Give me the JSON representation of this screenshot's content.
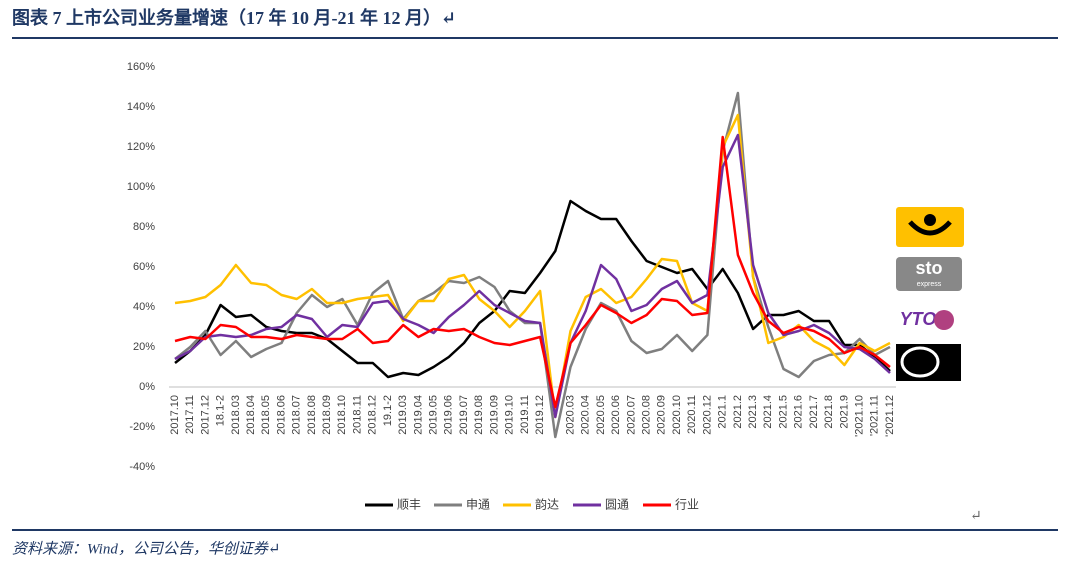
{
  "header": {
    "title": "图表 7  上市公司业务量增速（17 年 10 月-21 年 12 月）↵"
  },
  "footer": {
    "source": "资料来源：Wind，公司公告，华创证券↵"
  },
  "end_mark": "↵",
  "logos": [
    "sto",
    "express",
    "YTO"
  ],
  "chart_data": {
    "type": "line",
    "categories": [
      "2017.10",
      "2017.11",
      "2017.12",
      "18.1-2",
      "2018.03",
      "2018.04",
      "2018.05",
      "2018.06",
      "2018.07",
      "2018.08",
      "2018.09",
      "2018.10",
      "2018.11",
      "2018.12",
      "19.1-2",
      "2019.03",
      "2019.04",
      "2019.05",
      "2019.06",
      "2019.07",
      "2019.08",
      "2019.09",
      "2019.10",
      "2019.11",
      "2019.12",
      null,
      "2020.03",
      "2020.04",
      "2020.05",
      "2020.06",
      "2020.07",
      "2020.08",
      "2020.09",
      "2020.10",
      "2020.11",
      "2020.12",
      "2021.1",
      "2021.2",
      "2021.3",
      "2021.4",
      "2021.5",
      "2021.6",
      "2021.7",
      "2021.8",
      "2021.9",
      "'2021.10",
      "'2021.11",
      "'2021.12"
    ],
    "series": [
      {
        "name": "顺丰",
        "color": "#000000",
        "values": [
          12,
          18,
          26,
          41,
          35,
          36,
          30,
          28,
          27,
          27,
          24,
          18,
          12,
          12,
          5,
          7,
          6,
          10,
          15,
          22,
          32,
          38,
          48,
          47,
          57,
          68,
          93,
          88,
          84,
          84,
          73,
          63,
          60,
          57,
          59,
          49,
          59,
          47,
          29,
          36,
          36,
          38,
          33,
          33,
          21,
          21,
          15,
          8
        ]
      },
      {
        "name": "申通",
        "color": "#7f7f7f",
        "values": [
          14,
          20,
          28,
          16,
          23,
          15,
          19,
          22,
          37,
          46,
          40,
          44,
          31,
          47,
          53,
          34,
          43,
          47,
          53,
          52,
          55,
          50,
          38,
          32,
          32,
          -25,
          10,
          29,
          42,
          38,
          23,
          17,
          19,
          26,
          18,
          26,
          118,
          147,
          55,
          30,
          9,
          5,
          13,
          16,
          17,
          24,
          16,
          20
        ]
      },
      {
        "name": "韵达",
        "color": "#ffc000",
        "values": [
          42,
          43,
          45,
          51,
          61,
          52,
          51,
          46,
          44,
          49,
          42,
          42,
          44,
          45,
          46,
          33,
          43,
          43,
          54,
          56,
          44,
          38,
          30,
          38,
          48,
          -15,
          28,
          45,
          49,
          42,
          45,
          54,
          64,
          63,
          42,
          38,
          120,
          136,
          55,
          22,
          25,
          31,
          23,
          19,
          11,
          22,
          18,
          22
        ]
      },
      {
        "name": "圆通",
        "color": "#7030a0",
        "values": [
          14,
          18,
          25,
          26,
          25,
          26,
          29,
          30,
          36,
          34,
          25,
          31,
          30,
          42,
          43,
          34,
          31,
          27,
          35,
          41,
          48,
          41,
          37,
          33,
          32,
          -15,
          22,
          38,
          61,
          54,
          38,
          41,
          49,
          53,
          42,
          46,
          110,
          126,
          61,
          37,
          26,
          28,
          31,
          27,
          20,
          19,
          14,
          7
        ]
      },
      {
        "name": "行业",
        "color": "#ff0000",
        "values": [
          23,
          25,
          24,
          31,
          30,
          25,
          25,
          24,
          26,
          25,
          24,
          24,
          29,
          22,
          23,
          31,
          25,
          29,
          28,
          29,
          25,
          22,
          21,
          23,
          25,
          -10,
          22,
          31,
          41,
          37,
          32,
          36,
          44,
          43,
          36,
          37,
          125,
          66,
          47,
          33,
          27,
          30,
          28,
          24,
          17,
          20,
          16,
          10
        ]
      }
    ],
    "ylim": [
      -40,
      160
    ],
    "yticks": [
      {
        "value": -40,
        "label": "-40%"
      },
      {
        "value": -20,
        "label": "-20%"
      },
      {
        "value": 0,
        "label": "0%"
      },
      {
        "value": 20,
        "label": "20%"
      },
      {
        "value": 40,
        "label": "40%"
      },
      {
        "value": 60,
        "label": "60%"
      },
      {
        "value": 80,
        "label": "80%"
      },
      {
        "value": 100,
        "label": "100%"
      },
      {
        "value": 120,
        "label": "120%"
      },
      {
        "value": 140,
        "label": "140%"
      },
      {
        "value": 160,
        "label": "160%"
      }
    ],
    "grid": false,
    "legend": "bottom"
  }
}
